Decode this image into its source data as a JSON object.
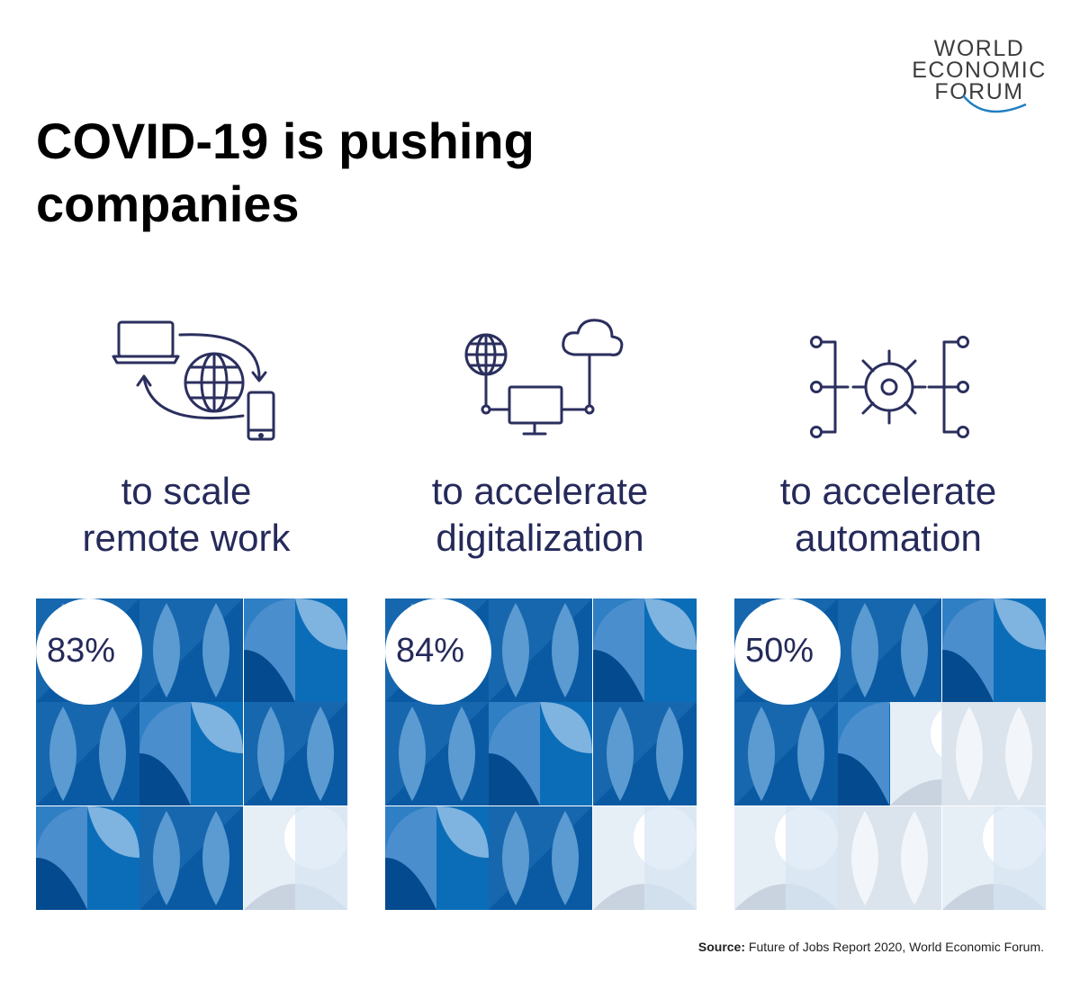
{
  "logo": {
    "lines": [
      "WORLD",
      "ECONOMIC",
      "FORUM"
    ],
    "arc_color": "#1f7fc1"
  },
  "title": "COVID-19 is pushing companies",
  "items": [
    {
      "caption_line1": "to scale",
      "caption_line2": "remote work",
      "percent_label": "83%",
      "percent_value": 83,
      "icon": "laptop-globe-phone-icon"
    },
    {
      "caption_line1": "to accelerate",
      "caption_line2": "digitalization",
      "percent_label": "84%",
      "percent_value": 84,
      "icon": "globe-cloud-computer-icon"
    },
    {
      "caption_line1": "to accelerate",
      "caption_line2": "automation",
      "percent_label": "50%",
      "percent_value": 50,
      "icon": "automation-gear-network-icon"
    }
  ],
  "source": {
    "label": "Source:",
    "text": "Future of Jobs Report 2020, World Economic Forum."
  },
  "colors": {
    "text_navy": "#252a5a",
    "icon_navy": "#2b2f5e",
    "blue_dark": "#034c91",
    "blue_mid": "#2f7fc4",
    "blue_light": "#6aa6d8",
    "pale": "#e6eef6"
  }
}
